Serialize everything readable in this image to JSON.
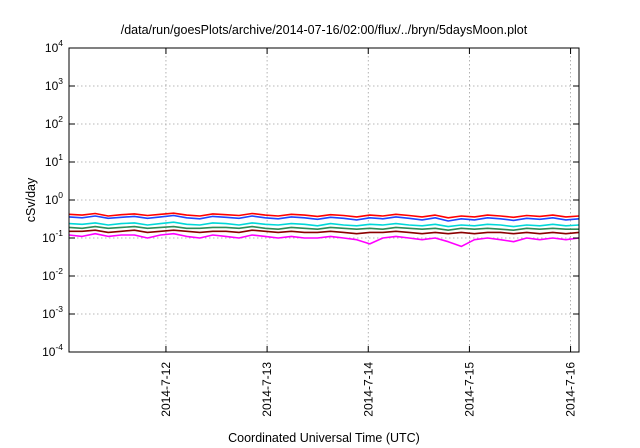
{
  "chart_data": {
    "type": "line",
    "title": "/data/run/goesPlots/archive/2014-07-16/02:00/flux/../bryn/5daysMoon.plot",
    "xlabel": "Coordinated Universal Time (UTC)",
    "ylabel": "cSv/day",
    "y_scale": "log",
    "ylim": [
      0.0001,
      10000
    ],
    "y_ticks": [
      {
        "base": "10",
        "exp": "4",
        "value": 10000
      },
      {
        "base": "10",
        "exp": "3",
        "value": 1000
      },
      {
        "base": "10",
        "exp": "2",
        "value": 100
      },
      {
        "base": "10",
        "exp": "1",
        "value": 10
      },
      {
        "base": "10",
        "exp": "0",
        "value": 1
      },
      {
        "base": "10",
        "exp": "-1",
        "value": 0.1
      },
      {
        "base": "10",
        "exp": "-2",
        "value": 0.01
      },
      {
        "base": "10",
        "exp": "-3",
        "value": 0.001
      },
      {
        "base": "10",
        "exp": "-4",
        "value": 0.0001
      }
    ],
    "x_start": "2014-07-11 01:00",
    "x_end": "2014-07-16 02:00",
    "x_ticks": [
      "2014-7-12",
      "2014-7-13",
      "2014-7-14",
      "2014-7-15",
      "2014-7-16"
    ],
    "grid": true,
    "series": [
      {
        "color": "#ff0000",
        "values": [
          0.42,
          0.4,
          0.44,
          0.38,
          0.41,
          0.43,
          0.39,
          0.42,
          0.45,
          0.4,
          0.38,
          0.43,
          0.41,
          0.39,
          0.44,
          0.4,
          0.38,
          0.42,
          0.4,
          0.37,
          0.41,
          0.39,
          0.36,
          0.4,
          0.38,
          0.42,
          0.39,
          0.36,
          0.4,
          0.34,
          0.38,
          0.36,
          0.4,
          0.38,
          0.35,
          0.39,
          0.37,
          0.4,
          0.36,
          0.38
        ]
      },
      {
        "color": "#1e46ff",
        "values": [
          0.36,
          0.34,
          0.38,
          0.33,
          0.35,
          0.37,
          0.33,
          0.36,
          0.39,
          0.34,
          0.32,
          0.37,
          0.35,
          0.33,
          0.38,
          0.34,
          0.32,
          0.36,
          0.34,
          0.31,
          0.35,
          0.33,
          0.3,
          0.34,
          0.32,
          0.36,
          0.33,
          0.3,
          0.34,
          0.28,
          0.32,
          0.3,
          0.34,
          0.32,
          0.29,
          0.33,
          0.31,
          0.34,
          0.3,
          0.32
        ]
      },
      {
        "color": "#00d8d8",
        "values": [
          0.24,
          0.23,
          0.25,
          0.22,
          0.24,
          0.25,
          0.22,
          0.24,
          0.26,
          0.23,
          0.22,
          0.25,
          0.24,
          0.22,
          0.25,
          0.23,
          0.22,
          0.24,
          0.23,
          0.21,
          0.24,
          0.22,
          0.21,
          0.23,
          0.22,
          0.24,
          0.22,
          0.21,
          0.23,
          0.2,
          0.22,
          0.21,
          0.23,
          0.22,
          0.2,
          0.22,
          0.21,
          0.23,
          0.21,
          0.22
        ]
      },
      {
        "color": "#2e8b57",
        "values": [
          0.19,
          0.18,
          0.2,
          0.18,
          0.19,
          0.2,
          0.18,
          0.19,
          0.2,
          0.18,
          0.18,
          0.19,
          0.19,
          0.18,
          0.2,
          0.18,
          0.17,
          0.19,
          0.18,
          0.17,
          0.19,
          0.18,
          0.17,
          0.18,
          0.17,
          0.19,
          0.18,
          0.17,
          0.18,
          0.16,
          0.18,
          0.17,
          0.18,
          0.17,
          0.16,
          0.18,
          0.17,
          0.18,
          0.17,
          0.17
        ]
      },
      {
        "color": "#8b0000",
        "values": [
          0.15,
          0.15,
          0.16,
          0.14,
          0.15,
          0.16,
          0.14,
          0.15,
          0.16,
          0.15,
          0.14,
          0.15,
          0.15,
          0.14,
          0.16,
          0.15,
          0.14,
          0.15,
          0.14,
          0.14,
          0.15,
          0.14,
          0.13,
          0.14,
          0.14,
          0.15,
          0.14,
          0.13,
          0.14,
          0.13,
          0.14,
          0.13,
          0.14,
          0.14,
          0.13,
          0.14,
          0.13,
          0.14,
          0.13,
          0.14
        ]
      },
      {
        "color": "#ff00ff",
        "values": [
          0.12,
          0.11,
          0.13,
          0.11,
          0.12,
          0.12,
          0.1,
          0.12,
          0.13,
          0.11,
          0.1,
          0.12,
          0.11,
          0.1,
          0.12,
          0.11,
          0.1,
          0.11,
          0.1,
          0.1,
          0.11,
          0.1,
          0.09,
          0.07,
          0.1,
          0.11,
          0.1,
          0.09,
          0.1,
          0.08,
          0.06,
          0.09,
          0.1,
          0.09,
          0.08,
          0.1,
          0.09,
          0.1,
          0.09,
          0.1
        ]
      }
    ]
  }
}
